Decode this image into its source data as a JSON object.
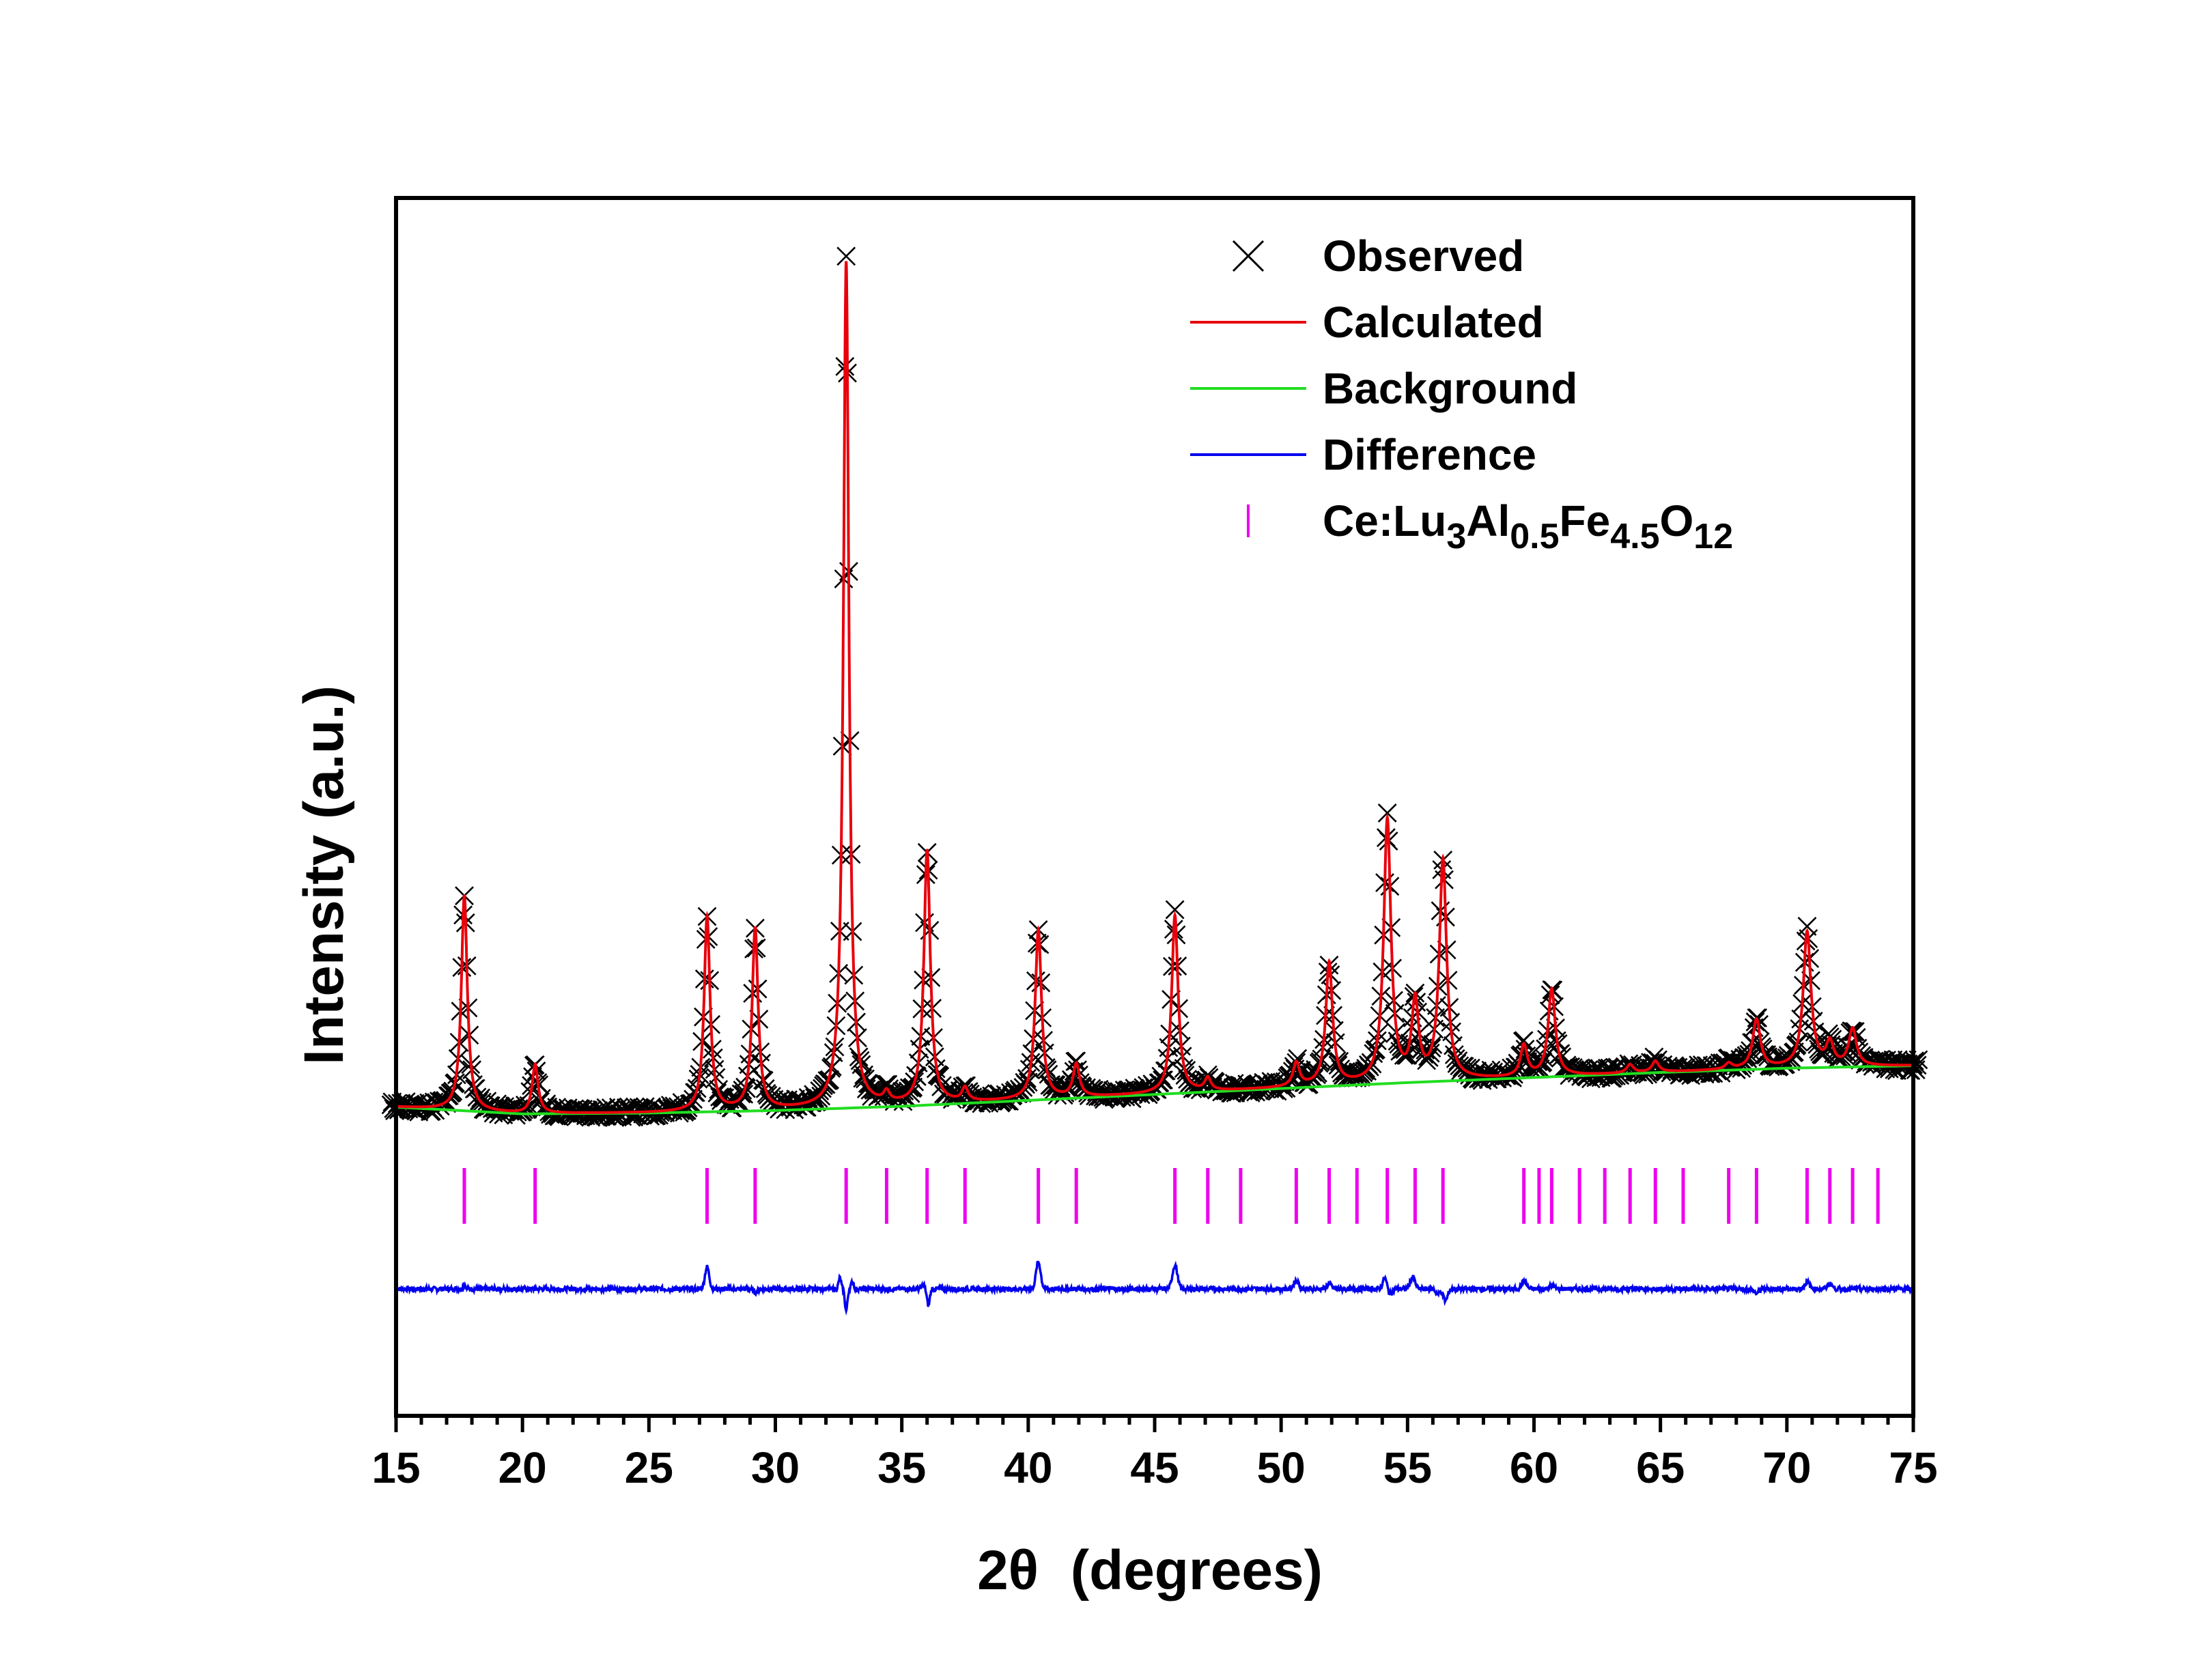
{
  "chart_data": {
    "type": "line",
    "title": "",
    "xlabel": {
      "main": "2θ",
      "unit": "(degrees)"
    },
    "ylabel": "Intensity (a.u.)",
    "xlim": [
      15,
      75
    ],
    "x_ticks": [
      15,
      20,
      25,
      30,
      35,
      40,
      45,
      50,
      55,
      60,
      65,
      70,
      75
    ],
    "x_tick_labels": [
      "15",
      "20",
      "25",
      "30",
      "35",
      "40",
      "45",
      "50",
      "55",
      "60",
      "65",
      "70",
      "75"
    ],
    "y_ticks_shown": false,
    "ylim": [
      -36,
      108
    ],
    "grid": false,
    "legend_position": "top-right",
    "legend": [
      {
        "key": "observed",
        "marker": "x",
        "label_parts": [
          {
            "t": "Observed",
            "sub": false
          }
        ]
      },
      {
        "key": "calculated",
        "marker": "line",
        "label_parts": [
          {
            "t": "Calculated",
            "sub": false
          }
        ]
      },
      {
        "key": "background",
        "marker": "line",
        "label_parts": [
          {
            "t": "Background",
            "sub": false
          }
        ]
      },
      {
        "key": "difference",
        "marker": "line",
        "label_parts": [
          {
            "t": "Difference",
            "sub": false
          }
        ]
      },
      {
        "key": "reflections",
        "marker": "tick",
        "label_parts": [
          {
            "t": "Ce:Lu",
            "sub": false
          },
          {
            "t": "3",
            "sub": true
          },
          {
            "t": "Al",
            "sub": false
          },
          {
            "t": "0.5",
            "sub": true
          },
          {
            "t": "Fe",
            "sub": false
          },
          {
            "t": "4.5",
            "sub": true
          },
          {
            "t": "O",
            "sub": false
          },
          {
            "t": "12",
            "sub": true
          }
        ]
      }
    ],
    "colors": {
      "observed": "#000000",
      "calculated": "#e8000b",
      "background": "#22dd22",
      "difference": "#0000ee",
      "reflections": "#ee00ee",
      "axes": "#000000"
    },
    "background": {
      "x": [
        15,
        20,
        25,
        30,
        35,
        40,
        45,
        50,
        55,
        60,
        65,
        70,
        75
      ],
      "y": [
        0.5,
        -0.3,
        -0.2,
        0.1,
        0.6,
        1.3,
        2.0,
        2.7,
        3.4,
        4.0,
        4.6,
        5.1,
        5.4
      ]
    },
    "peaks": [
      {
        "x": 17.7,
        "h": 25.5,
        "w": 0.14
      },
      {
        "x": 20.5,
        "h": 5.8,
        "w": 0.14
      },
      {
        "x": 27.3,
        "h": 23.0,
        "w": 0.14
      },
      {
        "x": 29.2,
        "h": 21.5,
        "w": 0.14
      },
      {
        "x": 32.8,
        "h": 100.0,
        "w": 0.13
      },
      {
        "x": 34.4,
        "h": 1.2,
        "w": 0.14
      },
      {
        "x": 36.0,
        "h": 30.0,
        "w": 0.15
      },
      {
        "x": 37.5,
        "h": 1.6,
        "w": 0.14
      },
      {
        "x": 40.4,
        "h": 20.0,
        "w": 0.15
      },
      {
        "x": 41.9,
        "h": 3.9,
        "w": 0.15
      },
      {
        "x": 45.8,
        "h": 21.0,
        "w": 0.15
      },
      {
        "x": 47.1,
        "h": 1.5,
        "w": 0.14
      },
      {
        "x": 50.6,
        "h": 2.8,
        "w": 0.15
      },
      {
        "x": 51.9,
        "h": 14.5,
        "w": 0.16
      },
      {
        "x": 54.2,
        "h": 31.0,
        "w": 0.17
      },
      {
        "x": 55.3,
        "h": 9.2,
        "w": 0.16
      },
      {
        "x": 56.4,
        "h": 26.0,
        "w": 0.17
      },
      {
        "x": 59.6,
        "h": 3.7,
        "w": 0.16
      },
      {
        "x": 60.7,
        "h": 10.3,
        "w": 0.17
      },
      {
        "x": 63.8,
        "h": 1.0,
        "w": 0.16
      },
      {
        "x": 64.8,
        "h": 1.3,
        "w": 0.16
      },
      {
        "x": 67.7,
        "h": 0.7,
        "w": 0.16
      },
      {
        "x": 68.8,
        "h": 5.8,
        "w": 0.18
      },
      {
        "x": 70.8,
        "h": 16.0,
        "w": 0.18
      },
      {
        "x": 71.7,
        "h": 2.7,
        "w": 0.17
      },
      {
        "x": 72.6,
        "h": 4.4,
        "w": 0.18
      }
    ],
    "reflection_ticks": [
      17.7,
      20.5,
      27.3,
      29.2,
      32.8,
      34.4,
      36.0,
      37.5,
      40.4,
      41.9,
      45.8,
      47.1,
      48.4,
      50.6,
      51.9,
      53.0,
      54.2,
      55.3,
      56.4,
      59.6,
      60.2,
      60.7,
      61.8,
      62.8,
      63.8,
      64.8,
      65.9,
      67.7,
      68.8,
      70.8,
      71.7,
      72.6,
      73.6
    ],
    "reflection_band": {
      "center": -10,
      "half_height": 3.3
    },
    "difference": {
      "offset": -21,
      "features": [
        {
          "x": 17.7,
          "a": 0.6,
          "w": 0.06
        },
        {
          "x": 27.3,
          "a": 2.6,
          "w": 0.12
        },
        {
          "x": 29.2,
          "a": -0.4,
          "w": 0.12
        },
        {
          "x": 32.55,
          "a": 1.3,
          "w": 0.07
        },
        {
          "x": 32.8,
          "a": -2.6,
          "w": 0.07
        },
        {
          "x": 33.05,
          "a": 0.9,
          "w": 0.07
        },
        {
          "x": 35.85,
          "a": 0.5,
          "w": 0.08
        },
        {
          "x": 36.05,
          "a": -1.9,
          "w": 0.08
        },
        {
          "x": 40.4,
          "a": 3.2,
          "w": 0.13
        },
        {
          "x": 45.8,
          "a": 2.8,
          "w": 0.14
        },
        {
          "x": 50.6,
          "a": 1.0,
          "w": 0.14
        },
        {
          "x": 51.9,
          "a": 0.6,
          "w": 0.14
        },
        {
          "x": 54.1,
          "a": 1.3,
          "w": 0.12
        },
        {
          "x": 54.3,
          "a": -0.6,
          "w": 0.12
        },
        {
          "x": 55.2,
          "a": 1.4,
          "w": 0.14
        },
        {
          "x": 56.2,
          "a": -0.6,
          "w": 0.12
        },
        {
          "x": 56.5,
          "a": -1.4,
          "w": 0.12
        },
        {
          "x": 59.6,
          "a": 0.9,
          "w": 0.14
        },
        {
          "x": 60.7,
          "a": 0.4,
          "w": 0.14
        },
        {
          "x": 68.8,
          "a": -0.5,
          "w": 0.14
        },
        {
          "x": 70.8,
          "a": 0.8,
          "w": 0.14
        },
        {
          "x": 71.7,
          "a": 0.6,
          "w": 0.14
        }
      ]
    }
  }
}
